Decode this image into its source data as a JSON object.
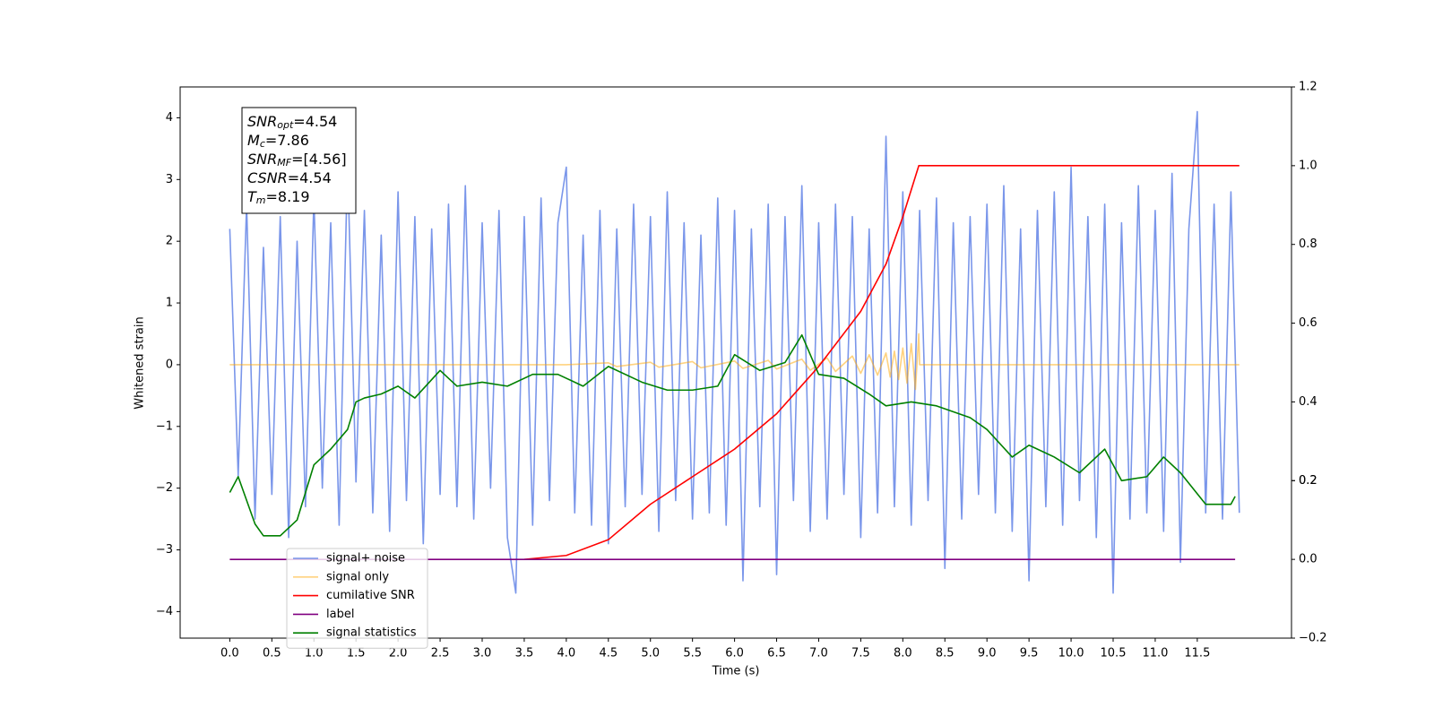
{
  "chart_data": {
    "type": "line",
    "xlabel": "Time (s)",
    "ylabel": "Whitened strain",
    "xlim": [
      -0.59,
      12.62
    ],
    "ylim": [
      -4.43,
      4.5
    ],
    "y2lim": [
      -0.2,
      1.2
    ],
    "xticks": [
      {
        "value": 0,
        "label": "0.0"
      },
      0.5,
      {
        "value": 1,
        "label": "1.0"
      },
      1.5,
      {
        "value": 2,
        "label": "2.0"
      },
      2.5,
      {
        "value": 3,
        "label": "3.0"
      },
      3.5,
      {
        "value": 4,
        "label": "4.0"
      },
      4.5,
      {
        "value": 5,
        "label": "5.0"
      },
      5.5,
      {
        "value": 6,
        "label": "6.0"
      },
      6.5,
      {
        "value": 7,
        "label": "7.0"
      },
      7.5,
      {
        "value": 8,
        "label": "8.0"
      },
      8.5,
      {
        "value": 9,
        "label": "9.0"
      },
      9.5,
      {
        "value": 10,
        "label": "10.0"
      },
      10.5,
      {
        "value": 11,
        "label": "11.0"
      },
      11.5
    ],
    "yticks": [
      {
        "value": -4,
        "label": "−4"
      },
      {
        "value": -3,
        "label": "−3"
      },
      {
        "value": -2,
        "label": "−2"
      },
      {
        "value": -1,
        "label": "−1"
      },
      0,
      1,
      2,
      3,
      4
    ],
    "y2ticks": [
      {
        "value": -0.2,
        "label": "−0.2"
      },
      {
        "value": 0,
        "label": "0.0"
      },
      0.2,
      0.4,
      0.6,
      0.8,
      {
        "value": 1,
        "label": "1.0"
      },
      0.2,
      {
        "value": 1.2,
        "label": "1.2"
      }
    ],
    "legend": "lower left",
    "annotations": [
      {
        "base": "SNR",
        "sub": "opt",
        "rest": "=4.54"
      },
      {
        "base": "M",
        "sub": "c",
        "rest": "=7.86"
      },
      {
        "base": "SNR",
        "sub": "MF",
        "rest": "=[4.56]"
      },
      {
        "base": "CSNR",
        "sub": "",
        "rest": "=4.54"
      },
      {
        "base": "T",
        "sub": "m",
        "rest": "=8.19"
      }
    ],
    "series": [
      {
        "name": "signal+ noise",
        "color": "#4169e1",
        "alpha": 0.7,
        "axis": "y",
        "x": [
          0,
          0.1,
          0.2,
          0.3,
          0.4,
          0.5,
          0.6,
          0.7,
          0.8,
          0.9,
          1,
          1.1,
          1.2,
          1.3,
          1.4,
          1.5,
          1.6,
          1.7,
          1.8,
          1.9,
          2,
          2.1,
          2.2,
          2.3,
          2.4,
          2.5,
          2.6,
          2.7,
          2.8,
          2.9,
          3,
          3.1,
          3.2,
          3.3,
          3.4,
          3.5,
          3.6,
          3.7,
          3.8,
          3.9,
          4,
          4.1,
          4.2,
          4.3,
          4.4,
          4.5,
          4.6,
          4.7,
          4.8,
          4.9,
          5,
          5.1,
          5.2,
          5.3,
          5.4,
          5.5,
          5.6,
          5.7,
          5.8,
          5.9,
          6,
          6.1,
          6.2,
          6.3,
          6.4,
          6.5,
          6.6,
          6.7,
          6.8,
          6.9,
          7,
          7.1,
          7.2,
          7.3,
          7.4,
          7.5,
          7.6,
          7.7,
          7.8,
          7.9,
          8,
          8.1,
          8.2,
          8.3,
          8.4,
          8.5,
          8.6,
          8.7,
          8.8,
          8.9,
          9,
          9.1,
          9.2,
          9.3,
          9.4,
          9.5,
          9.6,
          9.7,
          9.8,
          9.9,
          10,
          10.1,
          10.2,
          10.3,
          10.4,
          10.5,
          10.6,
          10.7,
          10.8,
          10.9,
          11,
          11.1,
          11.2,
          11.3,
          11.4,
          11.5,
          11.6,
          11.7,
          11.8,
          11.9,
          12
        ],
        "values": [
          2.2,
          -1.8,
          2.6,
          -2.5,
          1.9,
          -2.1,
          2.4,
          -2.8,
          2.0,
          -2.3,
          2.7,
          -2.0,
          2.3,
          -2.6,
          3.3,
          -1.9,
          2.5,
          -2.4,
          2.1,
          -2.7,
          2.8,
          -2.2,
          2.4,
          -2.9,
          2.2,
          -2.1,
          2.6,
          -2.3,
          2.9,
          -2.5,
          2.3,
          -2.0,
          2.5,
          -2.8,
          -3.7,
          2.4,
          -2.6,
          2.7,
          -2.2,
          2.3,
          3.2,
          -2.4,
          2.1,
          -2.6,
          2.5,
          -2.9,
          2.2,
          -2.3,
          2.6,
          -2.1,
          2.4,
          -2.7,
          2.8,
          -2.2,
          2.3,
          -2.5,
          2.1,
          -2.4,
          2.7,
          -2.6,
          2.5,
          -3.5,
          2.2,
          -2.3,
          2.6,
          -3.4,
          2.4,
          -2.2,
          2.9,
          -2.7,
          2.3,
          -2.5,
          2.6,
          -2.1,
          2.4,
          -2.8,
          2.2,
          -2.4,
          3.7,
          -2.3,
          2.8,
          -2.6,
          2.5,
          -2.2,
          2.7,
          -3.3,
          2.3,
          -2.5,
          2.4,
          -2.1,
          2.6,
          -2.4,
          2.9,
          -2.7,
          2.2,
          -3.5,
          2.5,
          -2.3,
          2.8,
          -2.6,
          3.2,
          -2.2,
          2.4,
          -2.8,
          2.6,
          -3.7,
          2.3,
          -2.5,
          2.9,
          -2.4,
          2.5,
          -2.7,
          3.1,
          -3.2,
          2.2,
          4.1,
          -2.4,
          2.6,
          -2.5,
          2.8,
          -2.4
        ]
      },
      {
        "name": "signal only",
        "color": "#ffa500",
        "alpha": 0.5,
        "axis": "y",
        "x": [
          0,
          4.0,
          4.5,
          4.6,
          5.0,
          5.1,
          5.5,
          5.6,
          6.0,
          6.1,
          6.4,
          6.5,
          6.8,
          6.9,
          7.1,
          7.2,
          7.4,
          7.5,
          7.6,
          7.7,
          7.8,
          7.85,
          7.9,
          7.95,
          8.0,
          8.05,
          8.1,
          8.15,
          8.19,
          8.2,
          12.0
        ],
        "values": [
          0,
          0,
          0.03,
          -0.03,
          0.04,
          -0.04,
          0.05,
          -0.05,
          0.06,
          -0.06,
          0.07,
          -0.07,
          0.09,
          -0.09,
          0.11,
          -0.11,
          0.14,
          -0.14,
          0.16,
          -0.17,
          0.19,
          -0.2,
          0.22,
          -0.24,
          0.27,
          -0.3,
          0.34,
          -0.4,
          0.5,
          0,
          0
        ]
      },
      {
        "name": "cumilative SNR",
        "color": "#ff0000",
        "alpha": 1,
        "axis": "y2",
        "x": [
          3.5,
          4.0,
          4.5,
          5.0,
          5.5,
          6.0,
          6.5,
          7.0,
          7.5,
          7.8,
          8.0,
          8.19,
          12.0
        ],
        "values": [
          0,
          0.01,
          0.05,
          0.14,
          0.21,
          0.28,
          0.37,
          0.49,
          0.63,
          0.75,
          0.87,
          1.0,
          1.0
        ]
      },
      {
        "name": "label",
        "color": "#800080",
        "alpha": 1,
        "axis": "y2",
        "x": [
          0,
          11.95
        ],
        "values": [
          0,
          0
        ]
      },
      {
        "name": "signal statistics",
        "color": "#008000",
        "alpha": 1,
        "axis": "y2",
        "x": [
          0,
          0.1,
          0.3,
          0.4,
          0.6,
          0.8,
          1.0,
          1.2,
          1.4,
          1.5,
          1.6,
          1.8,
          2.0,
          2.2,
          2.5,
          2.7,
          3.0,
          3.3,
          3.6,
          3.9,
          4.2,
          4.5,
          4.9,
          5.2,
          5.5,
          5.8,
          6.0,
          6.3,
          6.6,
          6.8,
          7.0,
          7.3,
          7.6,
          7.8,
          8.1,
          8.4,
          8.8,
          9.0,
          9.3,
          9.5,
          9.8,
          10.1,
          10.4,
          10.6,
          10.9,
          11.1,
          11.3,
          11.6,
          11.9,
          11.95
        ],
        "values": [
          0.17,
          0.21,
          0.09,
          0.06,
          0.06,
          0.1,
          0.24,
          0.28,
          0.33,
          0.4,
          0.41,
          0.42,
          0.44,
          0.41,
          0.48,
          0.44,
          0.45,
          0.44,
          0.47,
          0.47,
          0.44,
          0.49,
          0.45,
          0.43,
          0.43,
          0.44,
          0.52,
          0.48,
          0.5,
          0.57,
          0.47,
          0.46,
          0.42,
          0.39,
          0.4,
          0.39,
          0.36,
          0.33,
          0.26,
          0.29,
          0.26,
          0.22,
          0.28,
          0.2,
          0.21,
          0.26,
          0.22,
          0.14,
          0.14,
          0.16
        ]
      }
    ]
  }
}
